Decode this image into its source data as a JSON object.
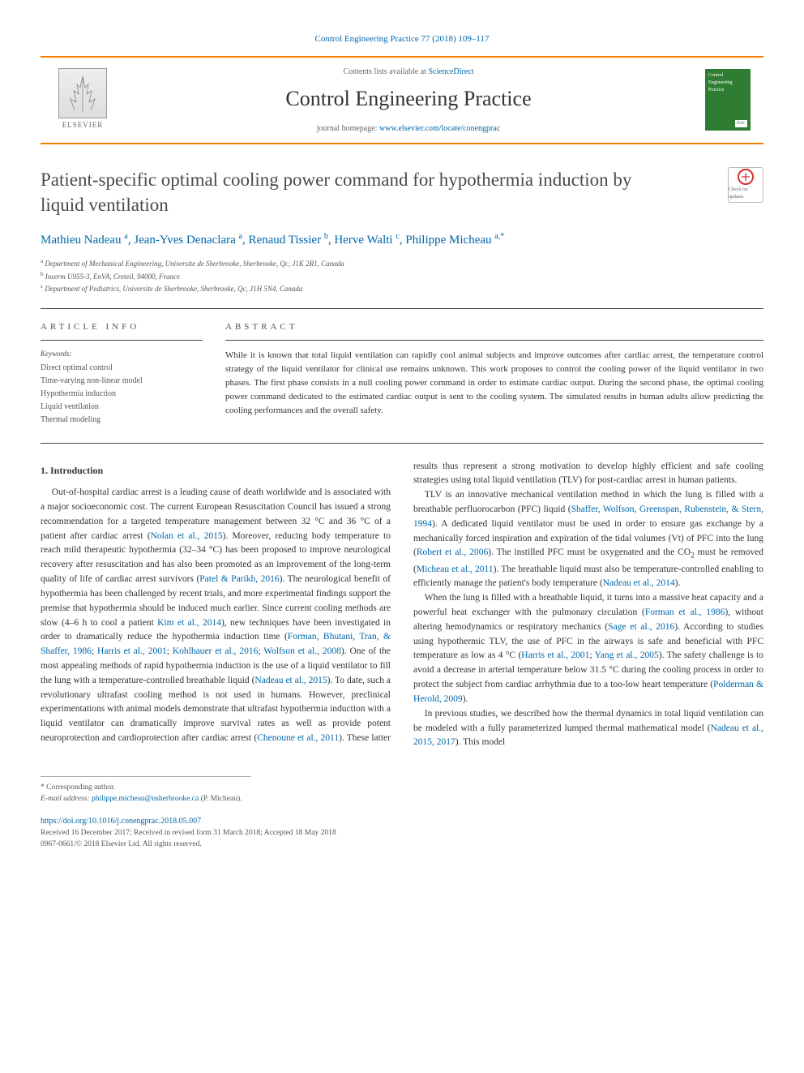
{
  "journal_ref": "Control Engineering Practice 77 (2018) 109–117",
  "header": {
    "contents_prefix": "Contents lists available at ",
    "contents_link": "ScienceDirect",
    "journal_title": "Control Engineering Practice",
    "homepage_prefix": "journal homepage: ",
    "homepage_link": "www.elsevier.com/locate/conengprac",
    "elsevier_label": "ELSEVIER",
    "cover_text": "Control Engineering Practice",
    "cover_badge": "IFAC"
  },
  "update_badge": "Check for updates",
  "title": "Patient-specific optimal cooling power command for hypothermia induction by liquid ventilation",
  "authors_list": [
    {
      "name": "Mathieu Nadeau",
      "aff": "a"
    },
    {
      "name": "Jean-Yves Denaclara",
      "aff": "a"
    },
    {
      "name": "Renaud Tissier",
      "aff": "b"
    },
    {
      "name": "Herve Walti",
      "aff": "c"
    },
    {
      "name": "Philippe Micheau",
      "aff": "a,",
      "corr": true
    }
  ],
  "affiliations": [
    {
      "sup": "a",
      "text": "Department of Mechanical Engineering, Universite de Sherbrooke, Sherbrooke, Qc, J1K 2R1, Canada"
    },
    {
      "sup": "b",
      "text": "Inserm U955-3, EnVA, Creteil, 94000, France"
    },
    {
      "sup": "c",
      "text": "Department of Pediatrics, Universite de Sherbrooke, Sherbrooke, Qc, J1H 5N4, Canada"
    }
  ],
  "article_info_head": "ARTICLE INFO",
  "abstract_head": "ABSTRACT",
  "keywords_label": "Keywords:",
  "keywords": [
    "Direct optimal control",
    "Time-varying non-linear model",
    "Hypothermia induction",
    "Liquid ventilation",
    "Thermal modeling"
  ],
  "abstract_text": "While it is known that total liquid ventilation can rapidly cool animal subjects and improve outcomes after cardiac arrest, the temperature control strategy of the liquid ventilator for clinical use remains unknown. This work proposes to control the cooling power of the liquid ventilator in two phases. The first phase consists in a null cooling power command in order to estimate cardiac output. During the second phase, the optimal cooling power command dedicated to the estimated cardiac output is sent to the cooling system. The simulated results in human adults allow predicting the cooling performances and the overall safety.",
  "section1_title": "1. Introduction",
  "intro_para1_pre": "Out-of-hospital cardiac arrest is a leading cause of death worldwide and is associated with a major socioeconomic cost. The current European Resuscitation Council has issued a strong recommendation for a targeted temperature management between 32 °C and 36 °C of a patient after cardiac arrest (",
  "cite_nolan": "Nolan et al., 2015",
  "intro_para1_mid1": "). Moreover, reducing body temperature to reach mild therapeutic hypothermia (32–34 °C) has been proposed to improve neurological recovery after resuscitation and has also been promoted as an improvement of the long-term quality of life of cardiac arrest survivors (",
  "cite_patel": "Patel & Parikh, 2016",
  "intro_para1_mid2": "). The neurological benefit of hypothermia has been challenged by recent trials, and more experimental findings support the premise that hypothermia should be induced much earlier. Since current cooling methods are slow (4–6 h to cool a patient ",
  "cite_kim": "Kim et al., 2014",
  "intro_para1_mid3": "), new techniques have been investigated in order to dramatically reduce the hypothermia induction time (",
  "cite_forman86": "Forman, Bhutani, Tran, & Shaffer, 1986",
  "sep1": "; ",
  "cite_harris01": "Harris et al., 2001",
  "sep2": "; ",
  "cite_kohlhauer": "Kohlhauer et al., 2016",
  "sep3": "; ",
  "cite_wolfson": "Wolfson et al., 2008",
  "intro_para1_mid4": "). One of the most appealing methods of rapid hypothermia induction is the use of a liquid ventilator to fill the lung with a temperature-controlled breathable liquid (",
  "cite_nadeau15": "Nadeau et al., 2015",
  "intro_para1_mid5": "). To date, such a revolutionary ultrafast cooling method is not used in humans. However, preclinical experimentations with animal models demonstrate that ultrafast hypothermia induction with a liquid ventilator can dramatically improve survival rates as well as provide potent neuroprotection and cardioprotection after cardiac arrest (",
  "cite_chenoune": "Chenoune et al., 2011",
  "intro_para1_end": "). These latter results thus represent a strong motivation to develop highly efficient and safe cooling strategies using total liquid ventilation (TLV) for post-cardiac arrest in human patients.",
  "intro_para2_pre": "TLV is an innovative mechanical ventilation method in which the lung is filled with a breathable perfluorocarbon (PFC) liquid (",
  "cite_shaffer": "Shaffer, Wolfson, Greenspan, Rubenstein, & Stern, 1994",
  "intro_para2_mid1": "). A dedicated liquid ventilator must be used in order to ensure gas exchange by a mechanically forced inspiration and expiration of the tidal volumes (Vt) of PFC into the lung (",
  "cite_robert": "Robert et al., 2006",
  "intro_para2_mid2": "). The instilled PFC must be oxygenated and the CO",
  "co2_sub": "2",
  "intro_para2_mid3": " must be removed (",
  "cite_micheau": "Micheau et al., 2011",
  "intro_para2_mid4": "). The breathable liquid must also be temperature-controlled enabling to efficiently manage the patient's body temperature (",
  "cite_nadeau14": "Nadeau et al., 2014",
  "intro_para2_end": ").",
  "intro_para3_pre": "When the lung is filled with a breathable liquid, it turns into a massive heat capacity and a powerful heat exchanger with the pulmonary circulation (",
  "cite_forman86b": "Forman et al., 1986",
  "intro_para3_mid1": "), without altering hemodynamics or respiratory mechanics (",
  "cite_sage": "Sage et al., 2016",
  "intro_para3_mid2": "). According to studies using hypothermic TLV, the use of PFC in the airways is safe and beneficial with PFC temperature as low as 4 °C (",
  "cite_harris01b": "Harris et al., 2001",
  "sep4": "; ",
  "cite_yang": "Yang et al., 2005",
  "intro_para3_mid3": "). The safety challenge is to avoid a decrease in arterial temperature below 31.5 °C during the cooling process in order to protect the subject from cardiac arrhythmia due to a too-low heart temperature (",
  "cite_polderman": "Polderman & Herold, 2009",
  "intro_para3_end": ").",
  "intro_para4_pre": "In previous studies, we described how the thermal dynamics in total liquid ventilation can be modeled with a fully parameterized lumped thermal mathematical model (",
  "cite_nadeau1517": "Nadeau et al., 2015, 2017",
  "intro_para4_end": "). This model",
  "footer": {
    "corr_label": "* Corresponding author.",
    "email_label": "E-mail address: ",
    "email": "philippe.micheau@usherbrooke.ca",
    "email_sfx": " (P. Micheau).",
    "doi": "https://doi.org/10.1016/j.conengprac.2018.05.007",
    "received": "Received 16 December 2017; Received in revised form 31 March 2018; Accepted 18 May 2018",
    "copyright": "0967-0661/© 2018 Elsevier Ltd. All rights reserved."
  },
  "colors": {
    "accent_orange": "#f57c00",
    "link_blue": "#0066aa",
    "cover_green": "#2e7d32",
    "text": "#333333"
  }
}
